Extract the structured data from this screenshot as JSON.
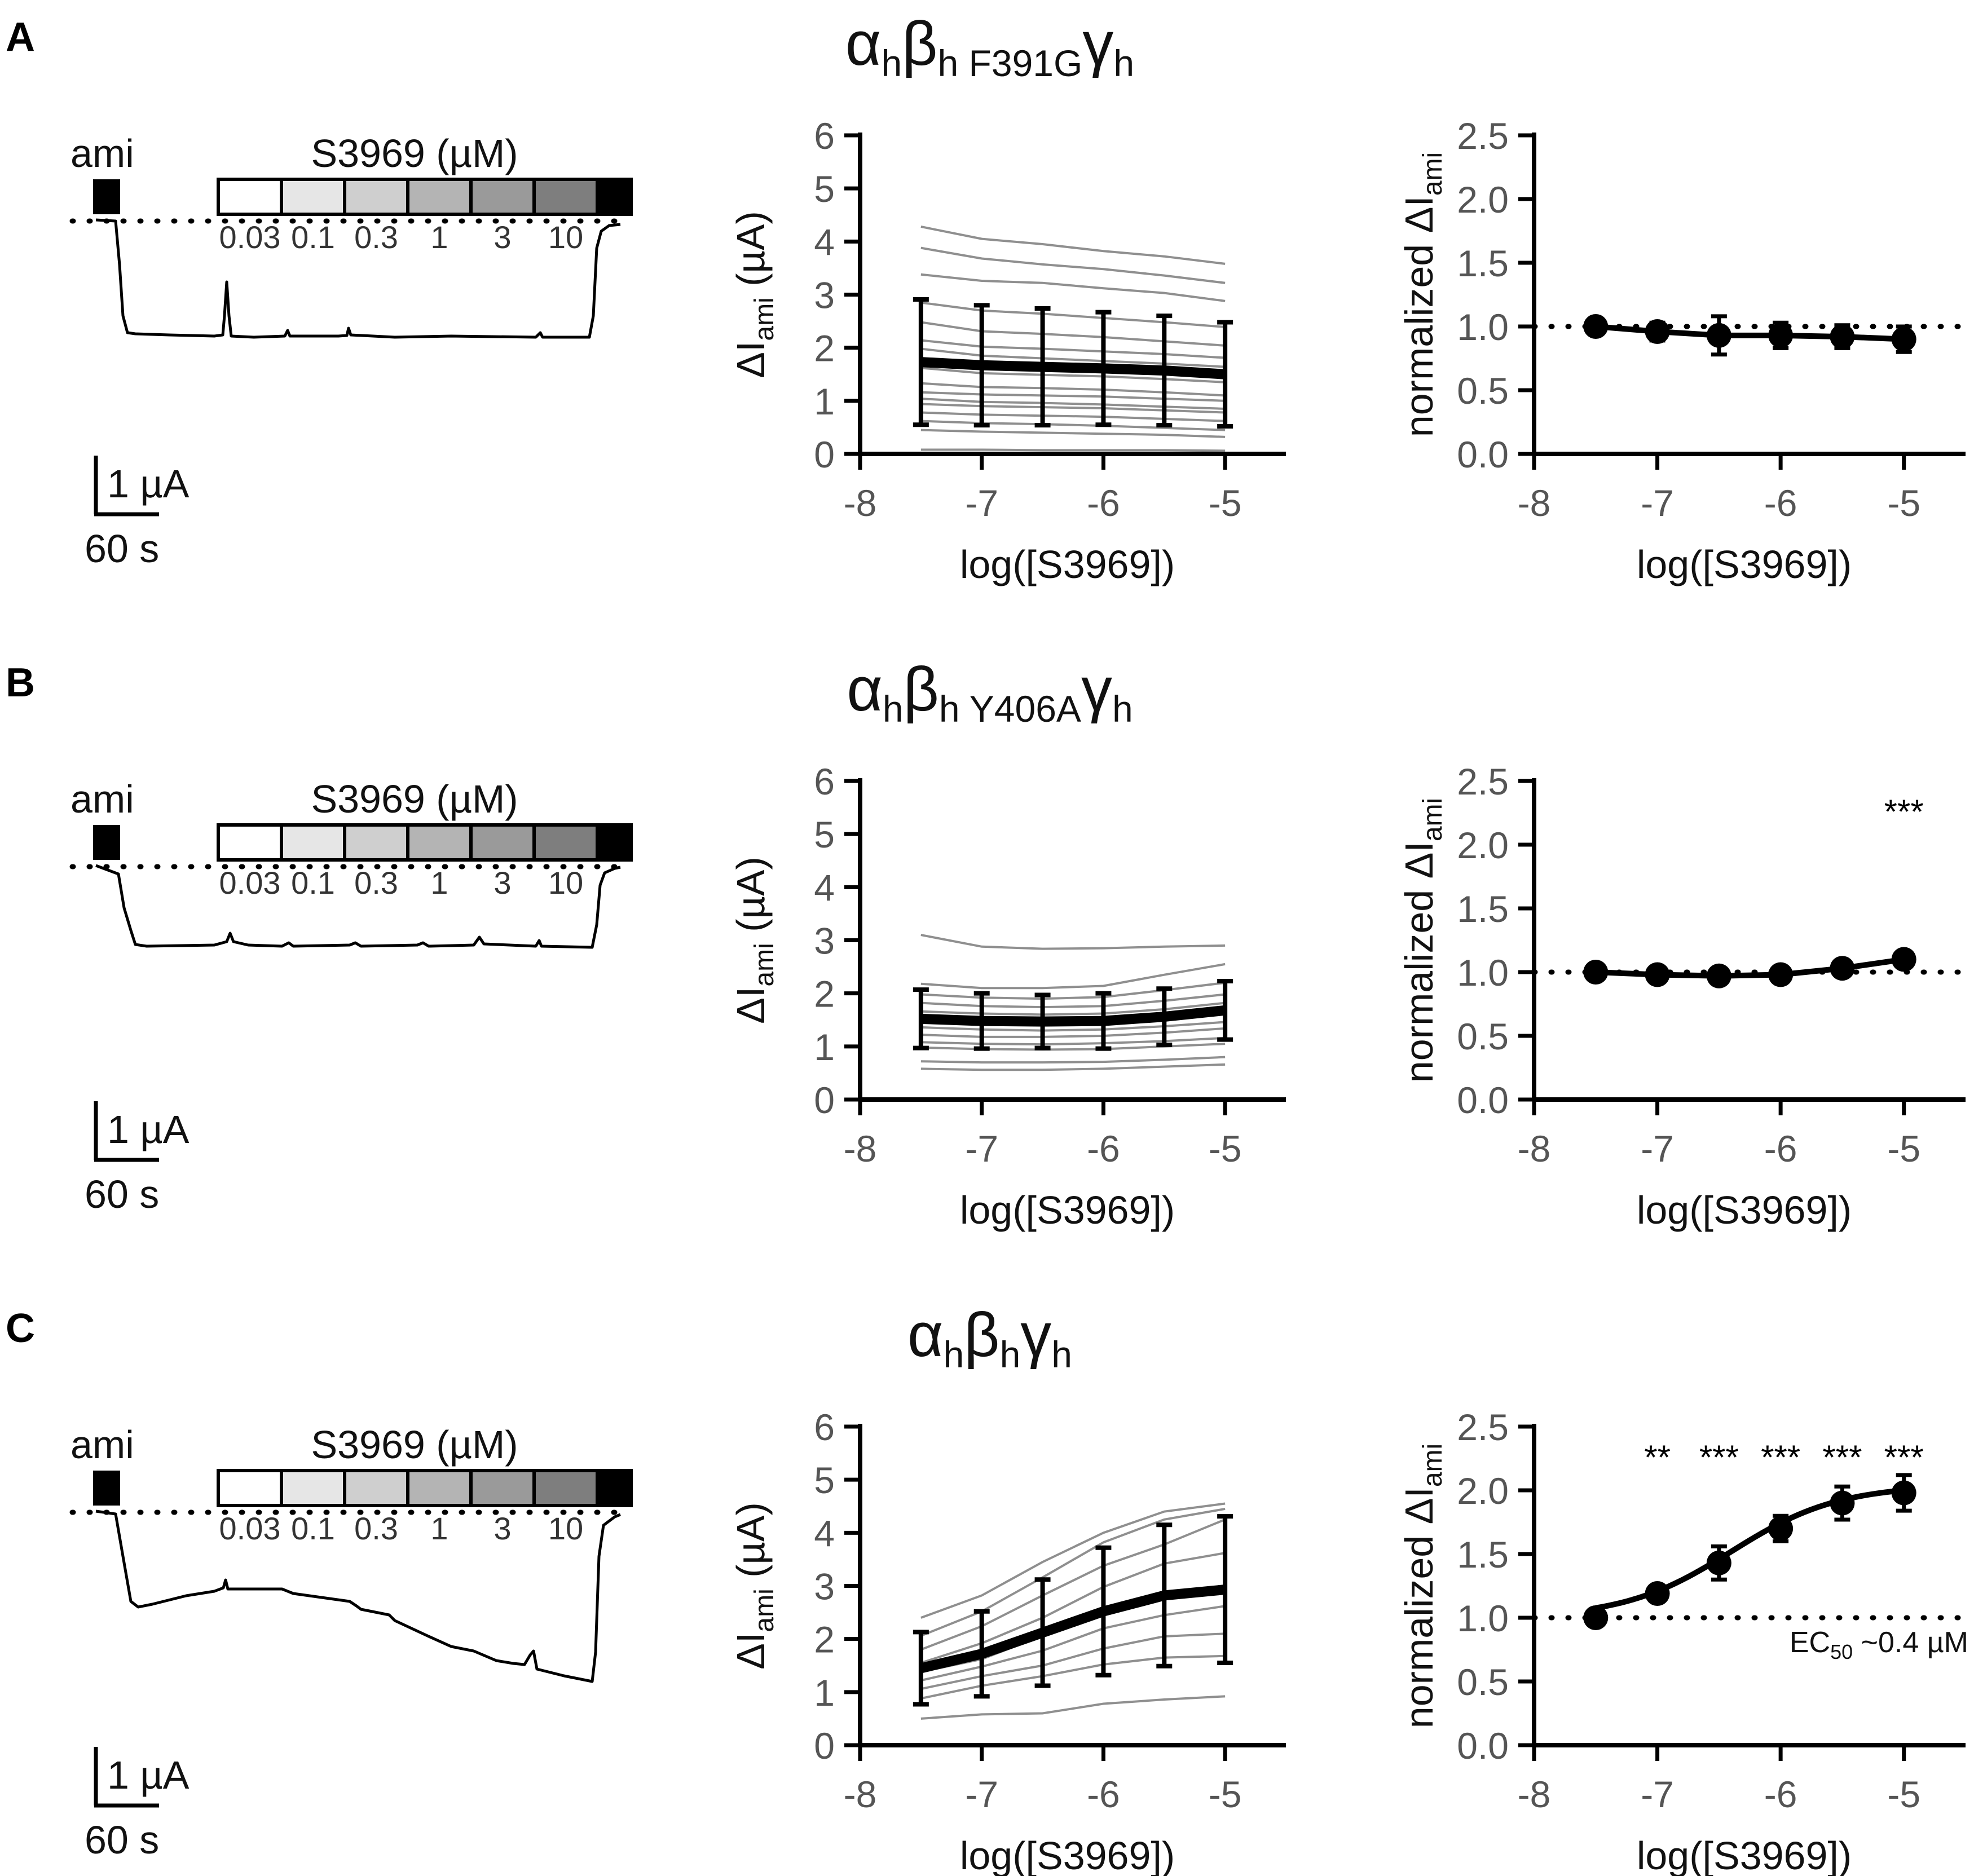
{
  "figure": {
    "panels": [
      {
        "letter": "A",
        "title": {
          "a": "α",
          "a_sub": "h",
          "b": "β",
          "b_sub": "h F391G",
          "g": "γ",
          "g_sub": "h"
        },
        "trace": {
          "ami_label": "ami",
          "drug_label": "S3969 (µM)",
          "conc_labels": [
            "0.03",
            "0.1",
            "0.3",
            "1",
            "3",
            "10"
          ],
          "conc_fill": [
            "#ffffff",
            "#e6e6e6",
            "#cfcfcf",
            "#b4b4b4",
            "#9a9a9a",
            "#7e7e7e"
          ],
          "scale_current": "1 µA",
          "scale_time": "60 s"
        },
        "significance": [],
        "annotation": ""
      },
      {
        "letter": "B",
        "title": {
          "a": "α",
          "a_sub": "h",
          "b": "β",
          "b_sub": "h Y406A",
          "g": "γ",
          "g_sub": "h"
        },
        "trace": {
          "ami_label": "ami",
          "drug_label": "S3969 (µM)",
          "conc_labels": [
            "0.03",
            "0.1",
            "0.3",
            "1",
            "3",
            "10"
          ],
          "conc_fill": [
            "#ffffff",
            "#e6e6e6",
            "#cfcfcf",
            "#b4b4b4",
            "#9a9a9a",
            "#7e7e7e"
          ],
          "scale_current": "1 µA",
          "scale_time": "60 s"
        },
        "significance": [
          "",
          "",
          "",
          "",
          "",
          "***"
        ],
        "annotation": ""
      },
      {
        "letter": "C",
        "title": {
          "a": "α",
          "a_sub": "h",
          "b": "β",
          "b_sub": "h",
          "g": "γ",
          "g_sub": "h"
        },
        "trace": {
          "ami_label": "ami",
          "drug_label": "S3969 (µM)",
          "conc_labels": [
            "0.03",
            "0.1",
            "0.3",
            "1",
            "3",
            "10"
          ],
          "conc_fill": [
            "#ffffff",
            "#e6e6e6",
            "#cfcfcf",
            "#b4b4b4",
            "#9a9a9a",
            "#7e7e7e"
          ],
          "scale_current": "1 µA",
          "scale_time": "60 s"
        },
        "significance": [
          "",
          "**",
          "***",
          "***",
          "***",
          "***"
        ],
        "annotation": {
          "prefix": "EC",
          "sub": "50",
          "suffix": " ~0.4 µM"
        }
      }
    ],
    "axis_text": {
      "xlabel": "log([S3969])",
      "ylabel_raw": {
        "pre": "ΔI",
        "sub": "ami",
        "post": " (µA)"
      },
      "ylabel_norm": {
        "pre": "normalized ΔI",
        "sub": "ami",
        "post": ""
      }
    }
  },
  "chart_data": [
    {
      "panel": "A-middle",
      "type": "line",
      "x": [
        -7.5,
        -7,
        -6.5,
        -6,
        -5.5,
        -5
      ],
      "xlim": [
        -8,
        -4.5
      ],
      "ylim": [
        0,
        6
      ],
      "xticks": [
        "-8",
        "-7",
        "-6",
        "-5"
      ],
      "yticks": [
        "0",
        "1",
        "2",
        "3",
        "4",
        "5",
        "6"
      ],
      "xlabel": "log([S3969])",
      "ylabel": "ΔI_ami (µA)",
      "mean": [
        1.73,
        1.67,
        1.64,
        1.61,
        1.57,
        1.5
      ],
      "err": [
        1.18,
        1.13,
        1.1,
        1.06,
        1.03,
        0.98
      ],
      "individual_cells": [
        [
          4.28,
          4.05,
          3.95,
          3.82,
          3.72,
          3.58
        ],
        [
          3.88,
          3.68,
          3.57,
          3.48,
          3.36,
          3.22
        ],
        [
          3.38,
          3.26,
          3.22,
          3.12,
          3.03,
          2.88
        ],
        [
          2.85,
          2.7,
          2.64,
          2.56,
          2.48,
          2.39
        ],
        [
          2.48,
          2.31,
          2.26,
          2.2,
          2.12,
          2.04
        ],
        [
          2.14,
          2.02,
          1.98,
          1.93,
          1.88,
          1.81
        ],
        [
          1.98,
          1.85,
          1.8,
          1.75,
          1.7,
          1.64
        ],
        [
          1.62,
          1.52,
          1.49,
          1.46,
          1.41,
          1.35
        ],
        [
          1.33,
          1.26,
          1.24,
          1.21,
          1.16,
          1.1
        ],
        [
          1.16,
          1.12,
          1.1,
          1.08,
          1.04,
          1.0
        ],
        [
          1.04,
          0.98,
          0.96,
          0.93,
          0.89,
          0.85
        ],
        [
          0.94,
          0.9,
          0.88,
          0.86,
          0.82,
          0.78
        ],
        [
          0.78,
          0.74,
          0.72,
          0.7,
          0.66,
          0.62
        ],
        [
          0.62,
          0.58,
          0.56,
          0.53,
          0.49,
          0.45
        ],
        [
          0.45,
          0.42,
          0.4,
          0.38,
          0.36,
          0.32
        ],
        [
          0.08,
          0.08,
          0.07,
          0.07,
          0.07,
          0.06
        ]
      ]
    },
    {
      "panel": "A-right",
      "type": "line",
      "x": [
        -7.5,
        -7,
        -6.5,
        -6,
        -5.5,
        -5
      ],
      "xlim": [
        -8,
        -4.5
      ],
      "ylim": [
        0,
        2.5
      ],
      "xticks": [
        "-8",
        "-7",
        "-6",
        "-5"
      ],
      "yticks": [
        "0.0",
        "0.5",
        "1.0",
        "1.5",
        "2.0",
        "2.5"
      ],
      "xlabel": "log([S3969])",
      "ylabel": "normalized ΔI_ami",
      "reference_line": 1.0,
      "mean": [
        1.0,
        0.96,
        0.93,
        0.93,
        0.92,
        0.9
      ],
      "err": [
        0.02,
        0.07,
        0.15,
        0.1,
        0.09,
        0.1
      ]
    },
    {
      "panel": "B-middle",
      "type": "line",
      "x": [
        -7.5,
        -7,
        -6.5,
        -6,
        -5.5,
        -5
      ],
      "xlim": [
        -8,
        -4.5
      ],
      "ylim": [
        0,
        6
      ],
      "xticks": [
        "-8",
        "-7",
        "-6",
        "-5"
      ],
      "yticks": [
        "0",
        "1",
        "2",
        "3",
        "4",
        "5",
        "6"
      ],
      "xlabel": "log([S3969])",
      "ylabel": "ΔI_ami (µA)",
      "mean": [
        1.52,
        1.48,
        1.47,
        1.48,
        1.56,
        1.68
      ],
      "err": [
        0.55,
        0.52,
        0.5,
        0.52,
        0.53,
        0.55
      ],
      "individual_cells": [
        [
          3.1,
          2.88,
          2.84,
          2.85,
          2.88,
          2.9
        ],
        [
          2.18,
          2.1,
          2.1,
          2.14,
          2.35,
          2.55
        ],
        [
          1.98,
          1.92,
          1.9,
          1.93,
          2.06,
          2.2
        ],
        [
          1.82,
          1.76,
          1.74,
          1.76,
          1.86,
          1.98
        ],
        [
          1.66,
          1.62,
          1.6,
          1.62,
          1.7,
          1.82
        ],
        [
          1.5,
          1.46,
          1.44,
          1.45,
          1.52,
          1.62
        ],
        [
          1.36,
          1.32,
          1.3,
          1.32,
          1.38,
          1.46
        ],
        [
          1.22,
          1.18,
          1.18,
          1.2,
          1.26,
          1.34
        ],
        [
          1.08,
          1.05,
          1.04,
          1.06,
          1.1,
          1.16
        ],
        [
          0.98,
          0.95,
          0.94,
          0.95,
          1.0,
          1.05
        ],
        [
          0.72,
          0.7,
          0.7,
          0.71,
          0.75,
          0.8
        ],
        [
          0.58,
          0.56,
          0.56,
          0.58,
          0.62,
          0.66
        ]
      ]
    },
    {
      "panel": "B-right",
      "type": "line",
      "x": [
        -7.5,
        -7,
        -6.5,
        -6,
        -5.5,
        -5
      ],
      "xlim": [
        -8,
        -4.5
      ],
      "ylim": [
        0,
        2.5
      ],
      "xticks": [
        "-8",
        "-7",
        "-6",
        "-5"
      ],
      "yticks": [
        "0.0",
        "0.5",
        "1.0",
        "1.5",
        "2.0",
        "2.5"
      ],
      "xlabel": "log([S3969])",
      "ylabel": "normalized ΔI_ami",
      "reference_line": 1.0,
      "mean": [
        1.0,
        0.98,
        0.97,
        0.98,
        1.03,
        1.1
      ],
      "err": [
        0.02,
        0.02,
        0.03,
        0.03,
        0.04,
        0.06
      ]
    },
    {
      "panel": "C-middle",
      "type": "line",
      "x": [
        -7.5,
        -7,
        -6.5,
        -6,
        -5.5,
        -5
      ],
      "xlim": [
        -8,
        -4.5
      ],
      "ylim": [
        0,
        6
      ],
      "xticks": [
        "-8",
        "-7",
        "-6",
        "-5"
      ],
      "yticks": [
        "0",
        "1",
        "2",
        "3",
        "4",
        "5",
        "6"
      ],
      "xlabel": "log([S3969])",
      "ylabel": "ΔI_ami (µA)",
      "mean": [
        1.45,
        1.72,
        2.12,
        2.52,
        2.82,
        2.93
      ],
      "err": [
        0.68,
        0.8,
        1.0,
        1.2,
        1.33,
        1.38
      ],
      "individual_cells": [
        [
          2.4,
          2.82,
          3.45,
          4.0,
          4.4,
          4.55
        ],
        [
          2.06,
          2.52,
          3.16,
          3.82,
          4.25,
          4.45
        ],
        [
          1.8,
          2.24,
          2.82,
          3.38,
          3.78,
          4.25
        ],
        [
          1.55,
          1.92,
          2.4,
          2.98,
          3.42,
          3.62
        ],
        [
          1.38,
          1.62,
          2.06,
          2.52,
          2.82,
          2.92
        ],
        [
          1.22,
          1.48,
          1.78,
          2.2,
          2.45,
          2.62
        ],
        [
          1.06,
          1.3,
          1.5,
          1.82,
          2.05,
          2.1
        ],
        [
          0.88,
          1.12,
          1.3,
          1.52,
          1.65,
          1.68
        ],
        [
          0.5,
          0.58,
          0.6,
          0.78,
          0.86,
          0.92
        ]
      ]
    },
    {
      "panel": "C-right",
      "type": "line",
      "x": [
        -7.5,
        -7,
        -6.5,
        -6,
        -5.5,
        -5
      ],
      "xlim": [
        -8,
        -4.5
      ],
      "ylim": [
        0,
        2.5
      ],
      "xticks": [
        "-8",
        "-7",
        "-6",
        "-5"
      ],
      "yticks": [
        "0.0",
        "0.5",
        "1.0",
        "1.5",
        "2.0",
        "2.5"
      ],
      "xlabel": "log([S3969])",
      "ylabel": "normalized ΔI_ami",
      "reference_line": 1.0,
      "mean": [
        1.0,
        1.19,
        1.43,
        1.7,
        1.9,
        1.98
      ],
      "err": [
        0.02,
        0.05,
        0.13,
        0.1,
        0.13,
        0.14
      ],
      "fit": {
        "bottom": 1.0,
        "top": 2.04,
        "log_ec50": -6.4,
        "hill": 1.0
      }
    }
  ]
}
